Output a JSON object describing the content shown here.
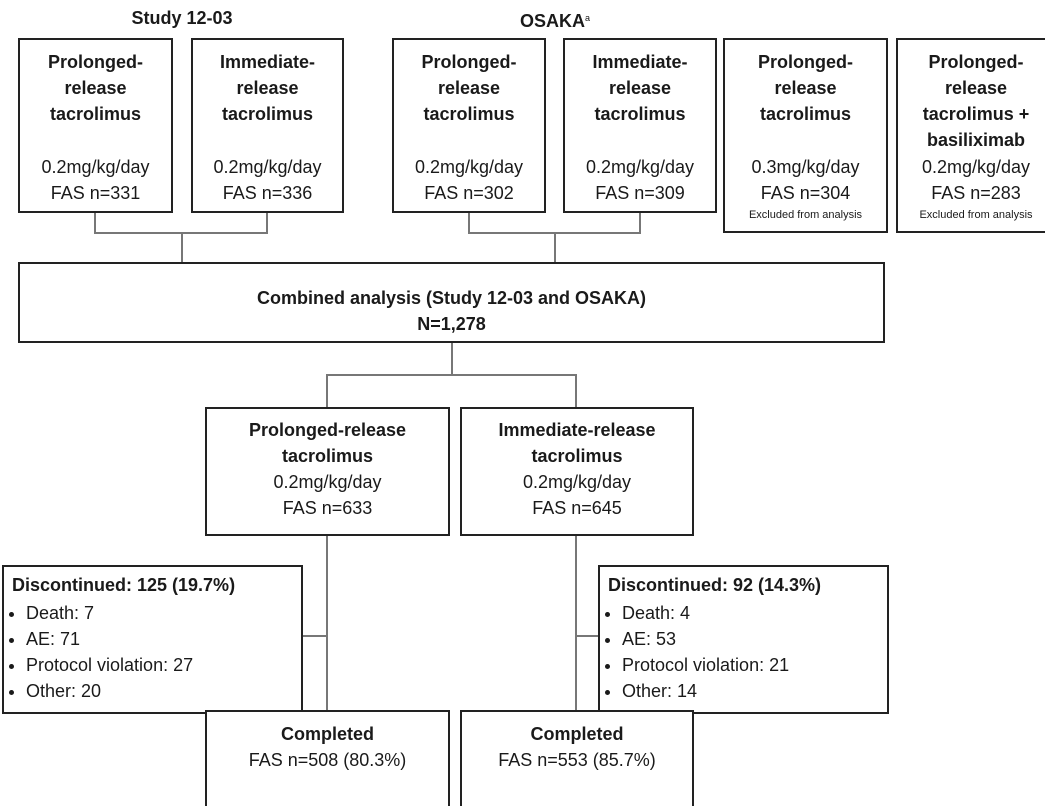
{
  "groups": [
    {
      "label": "Study 12-03"
    },
    {
      "label": "OSAKA",
      "superscript": "a"
    }
  ],
  "arms": [
    {
      "name_lines": [
        "Prolonged-",
        "release",
        "tacrolimus"
      ],
      "dose": "0.2mg/kg/day",
      "fas": "FAS n=331"
    },
    {
      "name_lines": [
        "Immediate-",
        "release",
        "tacrolimus"
      ],
      "dose": "0.2mg/kg/day",
      "fas": "FAS n=336"
    },
    {
      "name_lines": [
        "Prolonged-",
        "release",
        "tacrolimus"
      ],
      "dose": "0.2mg/kg/day",
      "fas": "FAS n=302"
    },
    {
      "name_lines": [
        "Immediate-",
        "release",
        "tacrolimus"
      ],
      "dose": "0.2mg/kg/day",
      "fas": "FAS n=309"
    },
    {
      "name_lines": [
        "Prolonged-",
        "release",
        "tacrolimus"
      ],
      "dose": "0.3mg/kg/day",
      "fas": "FAS n=304",
      "note": "Excluded from analysis"
    },
    {
      "name_lines": [
        "Prolonged-",
        "release",
        "tacrolimus +",
        "basiliximab"
      ],
      "dose": "0.2mg/kg/day",
      "fas": "FAS n=283",
      "note": "Excluded from analysis"
    }
  ],
  "combined": {
    "title": "Combined analysis (Study 12-03 and OSAKA)",
    "n": "N=1,278"
  },
  "treatments": [
    {
      "name_lines": [
        "Prolonged-release",
        "tacrolimus"
      ],
      "dose": "0.2mg/kg/day",
      "fas": "FAS n=633"
    },
    {
      "name_lines": [
        "Immediate-release",
        "tacrolimus"
      ],
      "dose": "0.2mg/kg/day",
      "fas": "FAS n=645"
    }
  ],
  "discontinued": [
    {
      "title": "Discontinued: 125 (19.7%)",
      "items": [
        "Death: 7",
        "AE: 71",
        "Protocol violation: 27",
        "Other: 20"
      ]
    },
    {
      "title": "Discontinued: 92 (14.3%)",
      "items": [
        "Death: 4",
        "AE: 53",
        "Protocol violation: 21",
        "Other: 14"
      ]
    }
  ],
  "completed": [
    {
      "title": "Completed",
      "fas": "FAS n=508 (80.3%)"
    },
    {
      "title": "Completed",
      "fas": "FAS n=553 (85.7%)"
    }
  ]
}
